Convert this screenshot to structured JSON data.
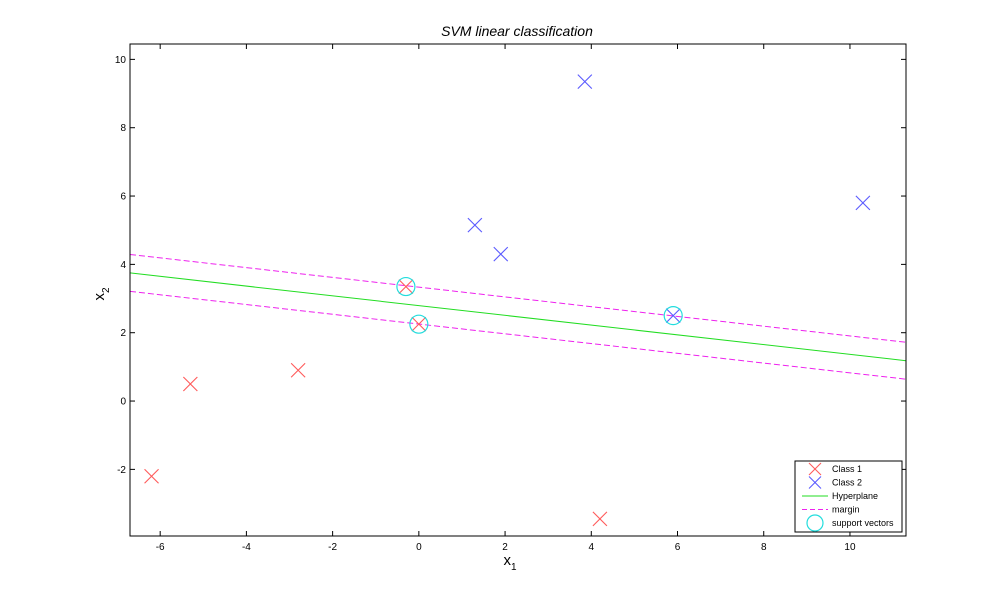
{
  "chart_data": {
    "type": "scatter",
    "title": "SVM linear classification",
    "xlabel": {
      "base": "x",
      "sub": "1"
    },
    "ylabel": {
      "base": "x",
      "sub": "2"
    },
    "xlim": [
      -6.7,
      11.3
    ],
    "ylim": [
      -3.95,
      10.45
    ],
    "xticks": [
      -6,
      -4,
      -2,
      0,
      2,
      4,
      6,
      8,
      10
    ],
    "yticks": [
      -2,
      0,
      2,
      4,
      6,
      8,
      10
    ],
    "grid": false,
    "legend_position": "bottom-right",
    "series": [
      {
        "name": "Class 1",
        "marker": "x",
        "color": "#ff5a5a",
        "points": [
          [
            -6.2,
            -2.2
          ],
          [
            -5.3,
            0.5
          ],
          [
            -2.8,
            0.9
          ],
          [
            -0.3,
            3.35
          ],
          [
            0.0,
            2.25
          ],
          [
            4.2,
            -3.45
          ]
        ]
      },
      {
        "name": "Class 2",
        "marker": "x",
        "color": "#5a5aff",
        "points": [
          [
            1.3,
            5.15
          ],
          [
            1.9,
            4.3
          ],
          [
            3.85,
            9.35
          ],
          [
            5.9,
            2.5
          ],
          [
            10.3,
            5.8
          ]
        ]
      }
    ],
    "hyperplane": {
      "name": "Hyperplane",
      "color": "#22dd22",
      "y_at_xmin": 3.75,
      "y_at_xmax": 1.18
    },
    "margin": {
      "name": "margin",
      "color": "#ee22ee",
      "offset": 0.54
    },
    "support_vectors": {
      "name": "support vectors",
      "color": "#22dddd",
      "points": [
        [
          -0.3,
          3.35
        ],
        [
          0.0,
          2.25
        ],
        [
          5.9,
          2.5
        ]
      ]
    }
  }
}
